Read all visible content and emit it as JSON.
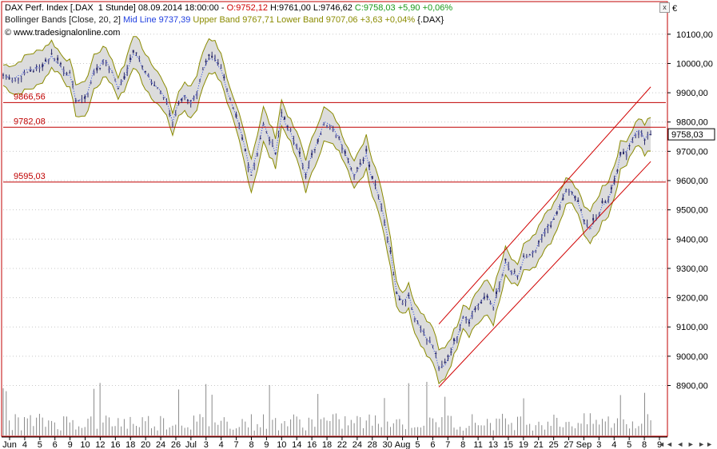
{
  "header": {
    "line1": {
      "label": "DAX Perf. Index [.DAX  1 Stunde] 08.09.2014 18:00:00 - ",
      "open": "O:9752,12",
      "hl": " H:9761,00 L:9746,62 ",
      "close": "C:9758,03 +5,90 +0,06%"
    },
    "line2": {
      "label": "Bollinger Bands [Close, 20, 2]",
      "mid": " Mid Line 9737,39",
      "upper": " Upper Band 9767,71",
      "lower": " Lower Band 9707,06 +3,63 +0,04%",
      "suffix": " {.DAX}"
    },
    "line3": {
      "copyright": "© www.tradesignalonline.com"
    }
  },
  "currency_symbol": "€",
  "close_button": "x",
  "colors": {
    "candle": "#2a2a6a",
    "band_fill": "#dcdcdc",
    "band_line": "#8b8b00",
    "mid_line": "#1f3fe0",
    "hline": "#c00000",
    "channel": "#d00000",
    "up_text": "#1a9a1a",
    "down_text": "#d00000"
  },
  "chart_data": {
    "type": "candlestick",
    "instrument": "DAX Perf. Index",
    "interval": "1 Stunde",
    "y_unit": "€",
    "ylim": [
      8825,
      10195
    ],
    "y_ticks": [
      "8900,00",
      "9000,00",
      "9100,00",
      "9200,00",
      "9300,00",
      "9400,00",
      "9500,00",
      "9600,00",
      "9700,00",
      "9800,00",
      "9900,00",
      "10000,00",
      "10100,00"
    ],
    "x_tick_labels": [
      "Jun",
      "4",
      "5",
      "6",
      "9",
      "10",
      "12",
      "16",
      "18",
      "20",
      "24",
      "26",
      "Jul",
      "3",
      "4",
      "7",
      "8",
      "9",
      "10",
      "14",
      "16",
      "18",
      "22",
      "24",
      "28",
      "30",
      "Aug",
      "5",
      "6",
      "7",
      "8",
      "11",
      "13",
      "15",
      "19",
      "21",
      "25",
      "27",
      "Sep",
      "3",
      "4",
      "5",
      "8",
      "9"
    ],
    "current_price": "9758,03",
    "horizontal_lines": [
      {
        "value": 9866.56,
        "label": "9866,56"
      },
      {
        "value": 9782.08,
        "label": "9782,08"
      },
      {
        "value": 9595.03,
        "label": "9595,03"
      }
    ],
    "close_path": [
      [
        0,
        9960
      ],
      [
        4,
        9945
      ],
      [
        8,
        9970
      ],
      [
        12,
        9985
      ],
      [
        16,
        10030
      ],
      [
        18,
        10010
      ],
      [
        22,
        9960
      ],
      [
        24,
        9880
      ],
      [
        26,
        9870
      ],
      [
        28,
        9900
      ],
      [
        30,
        9970
      ],
      [
        32,
        9990
      ],
      [
        34,
        10005
      ],
      [
        36,
        9970
      ],
      [
        38,
        9920
      ],
      [
        40,
        9950
      ],
      [
        42,
        10020
      ],
      [
        44,
        10040
      ],
      [
        46,
        9990
      ],
      [
        48,
        9960
      ],
      [
        50,
        9920
      ],
      [
        52,
        9910
      ],
      [
        54,
        9870
      ],
      [
        56,
        9800
      ],
      [
        58,
        9860
      ],
      [
        60,
        9880
      ],
      [
        62,
        9870
      ],
      [
        64,
        9900
      ],
      [
        66,
        9980
      ],
      [
        68,
        10030
      ],
      [
        70,
        10020
      ],
      [
        72,
        9990
      ],
      [
        74,
        9900
      ],
      [
        76,
        9840
      ],
      [
        78,
        9780
      ],
      [
        80,
        9700
      ],
      [
        82,
        9620
      ],
      [
        84,
        9700
      ],
      [
        86,
        9790
      ],
      [
        88,
        9740
      ],
      [
        90,
        9700
      ],
      [
        92,
        9830
      ],
      [
        94,
        9790
      ],
      [
        96,
        9740
      ],
      [
        98,
        9690
      ],
      [
        100,
        9620
      ],
      [
        102,
        9680
      ],
      [
        104,
        9740
      ],
      [
        106,
        9790
      ],
      [
        108,
        9780
      ],
      [
        110,
        9760
      ],
      [
        112,
        9720
      ],
      [
        114,
        9680
      ],
      [
        116,
        9620
      ],
      [
        118,
        9650
      ],
      [
        120,
        9700
      ],
      [
        122,
        9610
      ],
      [
        124,
        9560
      ],
      [
        126,
        9470
      ],
      [
        128,
        9350
      ],
      [
        130,
        9220
      ],
      [
        132,
        9180
      ],
      [
        134,
        9210
      ],
      [
        136,
        9130
      ],
      [
        138,
        9100
      ],
      [
        140,
        9060
      ],
      [
        142,
        9040
      ],
      [
        144,
        8960
      ],
      [
        146,
        8980
      ],
      [
        148,
        9020
      ],
      [
        150,
        9070
      ],
      [
        152,
        9140
      ],
      [
        154,
        9120
      ],
      [
        156,
        9160
      ],
      [
        158,
        9180
      ],
      [
        160,
        9200
      ],
      [
        162,
        9170
      ],
      [
        164,
        9240
      ],
      [
        166,
        9320
      ],
      [
        168,
        9290
      ],
      [
        170,
        9270
      ],
      [
        172,
        9340
      ],
      [
        174,
        9340
      ],
      [
        176,
        9360
      ],
      [
        178,
        9400
      ],
      [
        180,
        9440
      ],
      [
        182,
        9460
      ],
      [
        184,
        9510
      ],
      [
        186,
        9560
      ],
      [
        188,
        9560
      ],
      [
        190,
        9520
      ],
      [
        192,
        9470
      ],
      [
        194,
        9440
      ],
      [
        196,
        9470
      ],
      [
        198,
        9520
      ],
      [
        200,
        9540
      ],
      [
        202,
        9600
      ],
      [
        204,
        9680
      ],
      [
        206,
        9700
      ],
      [
        208,
        9740
      ],
      [
        210,
        9770
      ],
      [
        212,
        9740
      ],
      [
        214,
        9758
      ]
    ]
  }
}
